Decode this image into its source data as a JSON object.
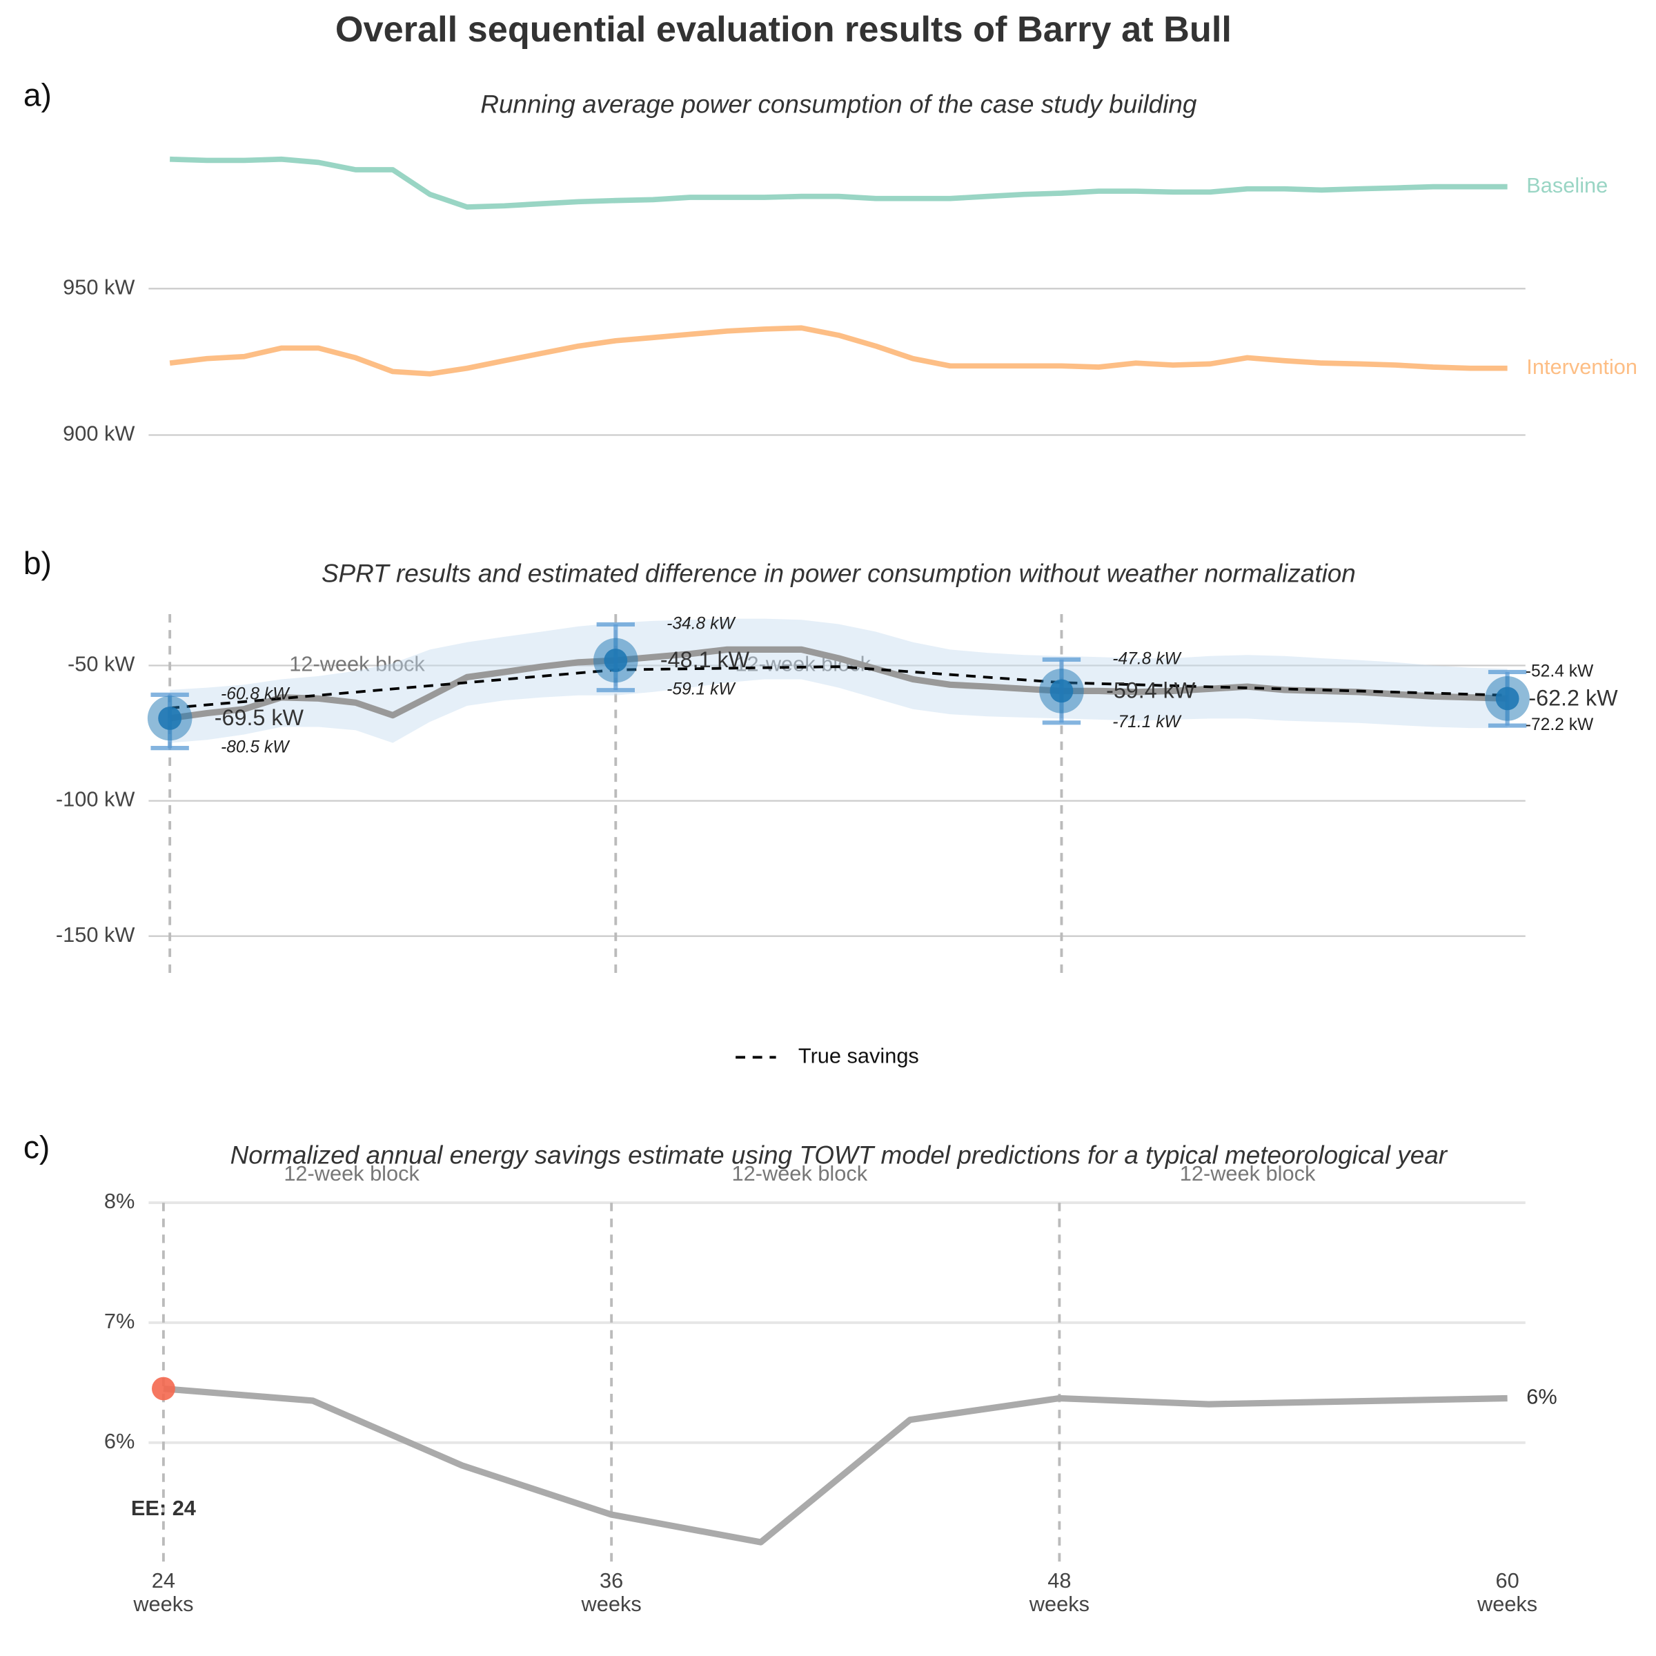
{
  "title": "Overall sequential evaluation results of Barry at Bull",
  "chart_data": [
    {
      "type": "line",
      "panel_label": "a)",
      "subtitle": "Running average power consumption of the case study building",
      "x": [
        24,
        25,
        26,
        27,
        28,
        29,
        30,
        31,
        32,
        33,
        34,
        35,
        36,
        37,
        38,
        39,
        40,
        41,
        42,
        43,
        44,
        45,
        46,
        47,
        48,
        49,
        50,
        51,
        52,
        53,
        54,
        55,
        56,
        57,
        58,
        59,
        60
      ],
      "xlim": [
        24,
        60
      ],
      "series": [
        {
          "name": "Baseline",
          "color": "#99d5c4",
          "values": [
            994.2,
            993.8,
            993.8,
            994.2,
            993.1,
            990.6,
            990.6,
            982.2,
            977.9,
            978.3,
            979.0,
            979.7,
            980.1,
            980.4,
            981.2,
            981.2,
            981.2,
            981.5,
            981.5,
            980.8,
            980.8,
            980.8,
            981.5,
            982.2,
            982.6,
            983.3,
            983.3,
            983.0,
            983.0,
            984.1,
            984.1,
            983.7,
            984.1,
            984.4,
            984.8,
            984.8,
            984.8
          ]
        },
        {
          "name": "Intervention",
          "color": "#fdbe85",
          "values": [
            924.6,
            926.1,
            926.8,
            929.7,
            929.7,
            926.4,
            921.7,
            920.9,
            922.8,
            925.4,
            927.9,
            930.4,
            932.2,
            933.3,
            934.4,
            935.5,
            936.2,
            936.6,
            934.1,
            930.4,
            926.1,
            923.6,
            923.6,
            923.6,
            923.6,
            923.2,
            924.6,
            923.9,
            924.3,
            926.4,
            925.4,
            924.6,
            924.3,
            923.9,
            923.2,
            922.8,
            922.8
          ]
        }
      ],
      "ylim": [
        880,
        1000
      ],
      "yticks": [
        {
          "value": 900,
          "label": "900 kW"
        },
        {
          "value": 950,
          "label": "950 kW"
        }
      ],
      "grid": true
    },
    {
      "type": "errorbar",
      "panel_label": "b)",
      "subtitle": "SPRT results and estimated difference in power consumption without weather normalization",
      "x": [
        24,
        25,
        26,
        27,
        28,
        29,
        30,
        31,
        32,
        33,
        34,
        35,
        36,
        37,
        38,
        39,
        40,
        41,
        42,
        43,
        44,
        45,
        46,
        47,
        48,
        49,
        50,
        51,
        52,
        53,
        54,
        55,
        56,
        57,
        58,
        59,
        60
      ],
      "xlim": [
        24,
        60
      ],
      "estimate": {
        "color": "#999999",
        "values": [
          -69.5,
          -67.6,
          -66.1,
          -61.8,
          -62.2,
          -63.7,
          -68.4,
          -61.4,
          -54.3,
          -52.4,
          -50.4,
          -48.8,
          -48.1,
          -46.9,
          -45.7,
          -44.1,
          -44.1,
          -44.1,
          -47.3,
          -51.2,
          -55.1,
          -57.1,
          -57.8,
          -58.6,
          -59.4,
          -59.4,
          -59.8,
          -59.4,
          -58.6,
          -57.8,
          -59.0,
          -59.4,
          -59.8,
          -60.6,
          -61.4,
          -61.8,
          -62.2
        ]
      },
      "ribbon": {
        "color": "#c6dbef",
        "upper": [
          -59.0,
          -58.2,
          -57.1,
          -55.1,
          -53.9,
          -52.0,
          -49.2,
          -44.1,
          -41.4,
          -39.4,
          -37.5,
          -35.5,
          -34.3,
          -33.5,
          -33.1,
          -32.7,
          -32.7,
          -33.1,
          -34.7,
          -37.5,
          -41.4,
          -44.1,
          -45.3,
          -46.1,
          -46.5,
          -46.9,
          -47.3,
          -47.3,
          -46.5,
          -46.1,
          -46.5,
          -47.3,
          -48.0,
          -48.8,
          -50.0,
          -50.8,
          -51.2
        ],
        "lower": [
          -78.6,
          -77.5,
          -75.5,
          -72.7,
          -72.7,
          -73.9,
          -78.6,
          -70.8,
          -64.9,
          -62.9,
          -61.8,
          -61.0,
          -61.0,
          -59.8,
          -58.2,
          -56.3,
          -55.1,
          -55.1,
          -58.2,
          -62.2,
          -66.1,
          -68.0,
          -68.8,
          -69.2,
          -69.6,
          -70.0,
          -70.4,
          -70.0,
          -69.6,
          -69.6,
          -70.4,
          -70.8,
          -71.2,
          -72.0,
          -72.7,
          -73.1,
          -73.1
        ]
      },
      "true_savings": {
        "name": "True savings",
        "color": "#000000",
        "x": [
          24,
          36,
          42,
          48,
          60
        ],
        "values": [
          -65.7,
          -51.6,
          -50.4,
          -56.3,
          -61.0
        ]
      },
      "checkpoints": {
        "color": "#1f78b4",
        "x": [
          24,
          36,
          48,
          60
        ],
        "values": [
          -69.5,
          -48.1,
          -59.4,
          -62.2
        ],
        "value_labels": [
          "-69.5 kW",
          "-48.1 kW",
          "-59.4 kW",
          "-62.2 kW"
        ],
        "upper": [
          -60.8,
          -34.8,
          -47.8,
          -52.4
        ],
        "upper_labels": [
          "-60.8 kW",
          "-34.8 kW",
          "-47.8 kW",
          "-52.4 kW"
        ],
        "lower": [
          -80.5,
          -59.1,
          -71.1,
          -72.2
        ],
        "lower_labels": [
          "-80.5 kW",
          "-59.1 kW",
          "-71.1 kW",
          "-72.2 kW"
        ]
      },
      "vlines": [
        24,
        36,
        48
      ],
      "annotations": [
        "12-week block",
        "12-week block"
      ],
      "ylim": [
        -163,
        -31
      ],
      "yticks": [
        {
          "value": -150,
          "label": "-150 kW"
        },
        {
          "value": -100,
          "label": "-100 kW"
        },
        {
          "value": -50,
          "label": "-50 kW"
        }
      ],
      "grid": true,
      "legend": "bottom"
    },
    {
      "type": "line",
      "panel_label": "c)",
      "subtitle": "Normalized annual energy savings estimate using TOWT model predictions for a typical meteorological year",
      "x": [
        24,
        28,
        32,
        36,
        40,
        44,
        48,
        52,
        60
      ],
      "xlim": [
        24,
        60
      ],
      "xticks": [
        {
          "value": 24,
          "label": "24\nweeks"
        },
        {
          "value": 36,
          "label": "36\nweeks"
        },
        {
          "value": 48,
          "label": "48\nweeks"
        },
        {
          "value": 60,
          "label": "60\nweeks"
        }
      ],
      "series": [
        {
          "color": "#aaaaaa",
          "values": [
            6.45,
            6.35,
            5.81,
            5.4,
            5.17,
            6.19,
            6.37,
            6.32,
            6.37
          ],
          "end_label": "6%"
        }
      ],
      "highlight": {
        "x": 24,
        "value": 6.45,
        "color": "#f4684f",
        "label": "EE: 24"
      },
      "vlines": [
        24,
        36,
        48
      ],
      "annotations": [
        "12-week block",
        "12-week block",
        "12-week block"
      ],
      "ylim": [
        5,
        8
      ],
      "yticks": [
        {
          "value": 6,
          "label": "6%"
        },
        {
          "value": 7,
          "label": "7%"
        },
        {
          "value": 8,
          "label": "8%"
        }
      ],
      "grid": true
    }
  ]
}
